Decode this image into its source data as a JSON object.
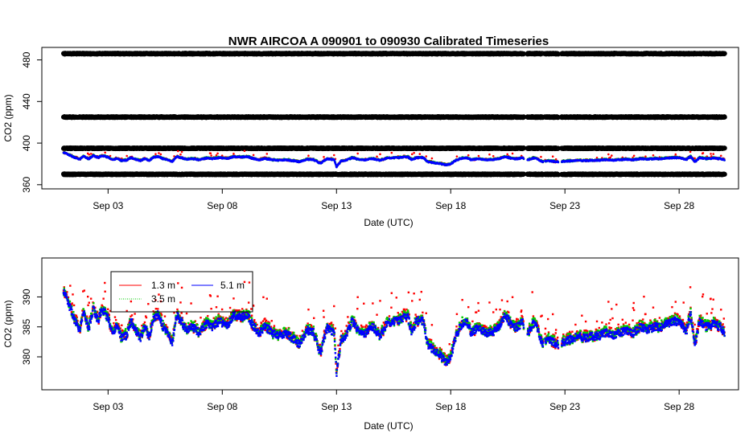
{
  "chart_data": [
    {
      "type": "scatter",
      "title": "NWR   AIRCOA  A    090901  to  090930   Calibrated Timeseries",
      "xlabel": "Date (UTC)",
      "ylabel": "CO2 (ppm)",
      "xlim": [
        -0.9,
        29.6
      ],
      "ylim": [
        356,
        492
      ],
      "x_ticks": [
        {
          "x": 2,
          "label": "Sep 03"
        },
        {
          "x": 7,
          "label": "Sep 08"
        },
        {
          "x": 12,
          "label": "Sep 13"
        },
        {
          "x": 17,
          "label": "Sep 18"
        },
        {
          "x": 22,
          "label": "Sep 23"
        },
        {
          "x": 27,
          "label": "Sep 28"
        }
      ],
      "y_ticks": [
        360,
        400,
        440,
        480
      ],
      "x_range": [
        0.05,
        29.0
      ],
      "gaps": [
        [
          20.2,
          20.35
        ],
        [
          21.05,
          21.12
        ],
        [
          21.72,
          21.85
        ]
      ],
      "calibration_levels": [
        370,
        395,
        425,
        486
      ],
      "colors": {
        "cal": "#000000",
        "s1": "#ff0000",
        "s2": "#00cc00",
        "s3": "#0000ff"
      }
    },
    {
      "type": "scatter",
      "xlabel": "Date (UTC)",
      "ylabel": "CO2 (ppm)",
      "xlim": [
        -0.9,
        29.6
      ],
      "ylim": [
        374.5,
        396.5
      ],
      "x_ticks": [
        {
          "x": 2,
          "label": "Sep 03"
        },
        {
          "x": 7,
          "label": "Sep 08"
        },
        {
          "x": 12,
          "label": "Sep 13"
        },
        {
          "x": 17,
          "label": "Sep 18"
        },
        {
          "x": 22,
          "label": "Sep 23"
        },
        {
          "x": 27,
          "label": "Sep 28"
        }
      ],
      "y_ticks": [
        380,
        385,
        390
      ],
      "legend": {
        "position": "top-left",
        "entries": [
          {
            "label": "1.3 m",
            "color": "#ff0000"
          },
          {
            "label": "3.5 m",
            "color": "#00cc00"
          },
          {
            "label": "5.1 m",
            "color": "#0000ff"
          }
        ]
      },
      "series_anchors": [
        [
          0.05,
          391
        ],
        [
          0.15,
          390
        ],
        [
          0.35,
          388
        ],
        [
          0.55,
          386
        ],
        [
          0.75,
          384.5
        ],
        [
          0.95,
          387.5
        ],
        [
          1.15,
          384.5
        ],
        [
          1.35,
          388
        ],
        [
          1.55,
          386
        ],
        [
          1.75,
          388
        ],
        [
          2.0,
          386.5
        ],
        [
          2.2,
          384
        ],
        [
          2.4,
          385.5
        ],
        [
          2.6,
          383
        ],
        [
          2.8,
          383.5
        ],
        [
          3.0,
          386
        ],
        [
          3.2,
          384.5
        ],
        [
          3.4,
          383
        ],
        [
          3.6,
          385
        ],
        [
          3.8,
          383.5
        ],
        [
          4.0,
          386.5
        ],
        [
          4.2,
          387
        ],
        [
          4.4,
          385
        ],
        [
          4.6,
          384
        ],
        [
          4.8,
          382
        ],
        [
          5.0,
          387
        ],
        [
          5.2,
          386
        ],
        [
          5.4,
          384.5
        ],
        [
          5.7,
          385
        ],
        [
          6.0,
          384
        ],
        [
          6.3,
          385.5
        ],
        [
          6.6,
          385
        ],
        [
          6.9,
          386
        ],
        [
          7.2,
          385
        ],
        [
          7.5,
          387
        ],
        [
          7.8,
          386.5
        ],
        [
          8.1,
          387
        ],
        [
          8.3,
          385.5
        ],
        [
          8.6,
          384
        ],
        [
          8.9,
          385
        ],
        [
          9.2,
          384
        ],
        [
          9.5,
          383.5
        ],
        [
          9.8,
          384
        ],
        [
          10.1,
          383
        ],
        [
          10.4,
          382
        ],
        [
          10.7,
          384.5
        ],
        [
          11.0,
          384
        ],
        [
          11.3,
          380.5
        ],
        [
          11.6,
          385
        ],
        [
          11.9,
          384
        ],
        [
          12.0,
          377
        ],
        [
          12.2,
          383
        ],
        [
          12.4,
          383.5
        ],
        [
          12.7,
          386
        ],
        [
          13.0,
          384
        ],
        [
          13.3,
          384
        ],
        [
          13.6,
          385
        ],
        [
          13.9,
          383.5
        ],
        [
          14.2,
          385.5
        ],
        [
          14.5,
          386
        ],
        [
          14.8,
          386
        ],
        [
          15.1,
          387
        ],
        [
          15.3,
          384
        ],
        [
          15.5,
          386
        ],
        [
          15.8,
          386
        ],
        [
          16.0,
          382
        ],
        [
          16.3,
          381
        ],
        [
          16.6,
          380
        ],
        [
          16.8,
          379
        ],
        [
          17.0,
          380
        ],
        [
          17.2,
          383
        ],
        [
          17.4,
          385
        ],
        [
          17.7,
          386
        ],
        [
          17.9,
          384
        ],
        [
          18.2,
          385
        ],
        [
          18.5,
          384
        ],
        [
          18.8,
          384
        ],
        [
          19.1,
          385
        ],
        [
          19.4,
          387
        ],
        [
          19.7,
          385
        ],
        [
          20.0,
          385
        ],
        [
          20.1,
          386
        ],
        [
          20.4,
          384
        ],
        [
          20.7,
          386
        ],
        [
          21.0,
          382
        ],
        [
          21.3,
          383
        ],
        [
          21.7,
          382
        ],
        [
          22.0,
          382.5
        ],
        [
          22.3,
          383
        ],
        [
          22.6,
          383.5
        ],
        [
          22.9,
          383
        ],
        [
          23.2,
          383.5
        ],
        [
          23.5,
          383.5
        ],
        [
          23.8,
          384
        ],
        [
          24.1,
          383.5
        ],
        [
          24.4,
          384
        ],
        [
          24.7,
          384.5
        ],
        [
          25.0,
          384
        ],
        [
          25.3,
          385
        ],
        [
          25.6,
          384.5
        ],
        [
          25.9,
          385
        ],
        [
          26.2,
          385
        ],
        [
          26.5,
          385.5
        ],
        [
          26.8,
          386
        ],
        [
          27.1,
          385.5
        ],
        [
          27.3,
          384
        ],
        [
          27.5,
          387
        ],
        [
          27.7,
          382
        ],
        [
          27.9,
          386
        ],
        [
          28.2,
          385
        ],
        [
          28.5,
          385.5
        ],
        [
          28.8,
          385
        ],
        [
          29.0,
          384
        ]
      ]
    }
  ]
}
